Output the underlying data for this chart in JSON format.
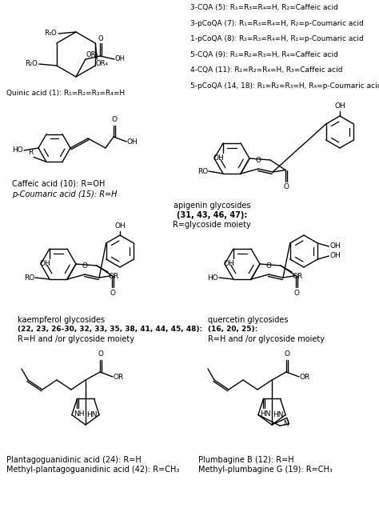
{
  "bg_color": "#ffffff",
  "figsize": [
    4.74,
    6.5
  ],
  "dpi": 100,
  "cqa_lines": [
    "3-CQA (5): R₁=R₃=R₄=H, R₂=Caffeic acid",
    "3-pCoQA (7): R₁=R₃=R₄=H, R₂=p-Coumaric acid",
    "1-pCoQA (8): R₂=R₃=R₄=H, R₁=p-Coumaric acid",
    "5-CQA (9): R₁=R₂=R₃=H, R₄=Caffeic acid",
    "4-CQA (11): R₁=R₂=R₄=H, R₃=Caffeic acid",
    "5-pCoQA (14, 18): R₁=R₂=R₃=H, R₄=p-Coumaric acid"
  ],
  "quinic_label": "Quinic acid (1): R₁=R₂=R₃=R₄=H",
  "caffeic_label1": "Caffeic acid (10): R=OH",
  "caffeic_label2": "p-Coumaric acid (15): R=H",
  "apigenin_label1": "apigenin glycosides",
  "apigenin_label2": "(31, 43, 46, 47):",
  "apigenin_label3": "R=glycoside moiety",
  "kaempferol_label1": "kaempferol glycosides",
  "kaempferol_label2": "(22, 23, 26-30, 32, 33, 35, 38, 41, 44, 45, 48):",
  "kaempferol_label3": "R=H and /or glycoside moiety",
  "quercetin_label1": "quercetin glycosides",
  "quercetin_label2": "(16, 20, 25):",
  "quercetin_label3": "R=H and /or glycoside moiety",
  "plantago_label1": "Plantagoguanidinic acid (24): R=H",
  "plantago_label2": "Methyl-plantagoguanidinic acid (42): R=CH₃",
  "plumbagine_label1": "Plumbagine B (12): R=H",
  "plumbagine_label2": "Methyl-plumbagine G (19): R=CH₃"
}
